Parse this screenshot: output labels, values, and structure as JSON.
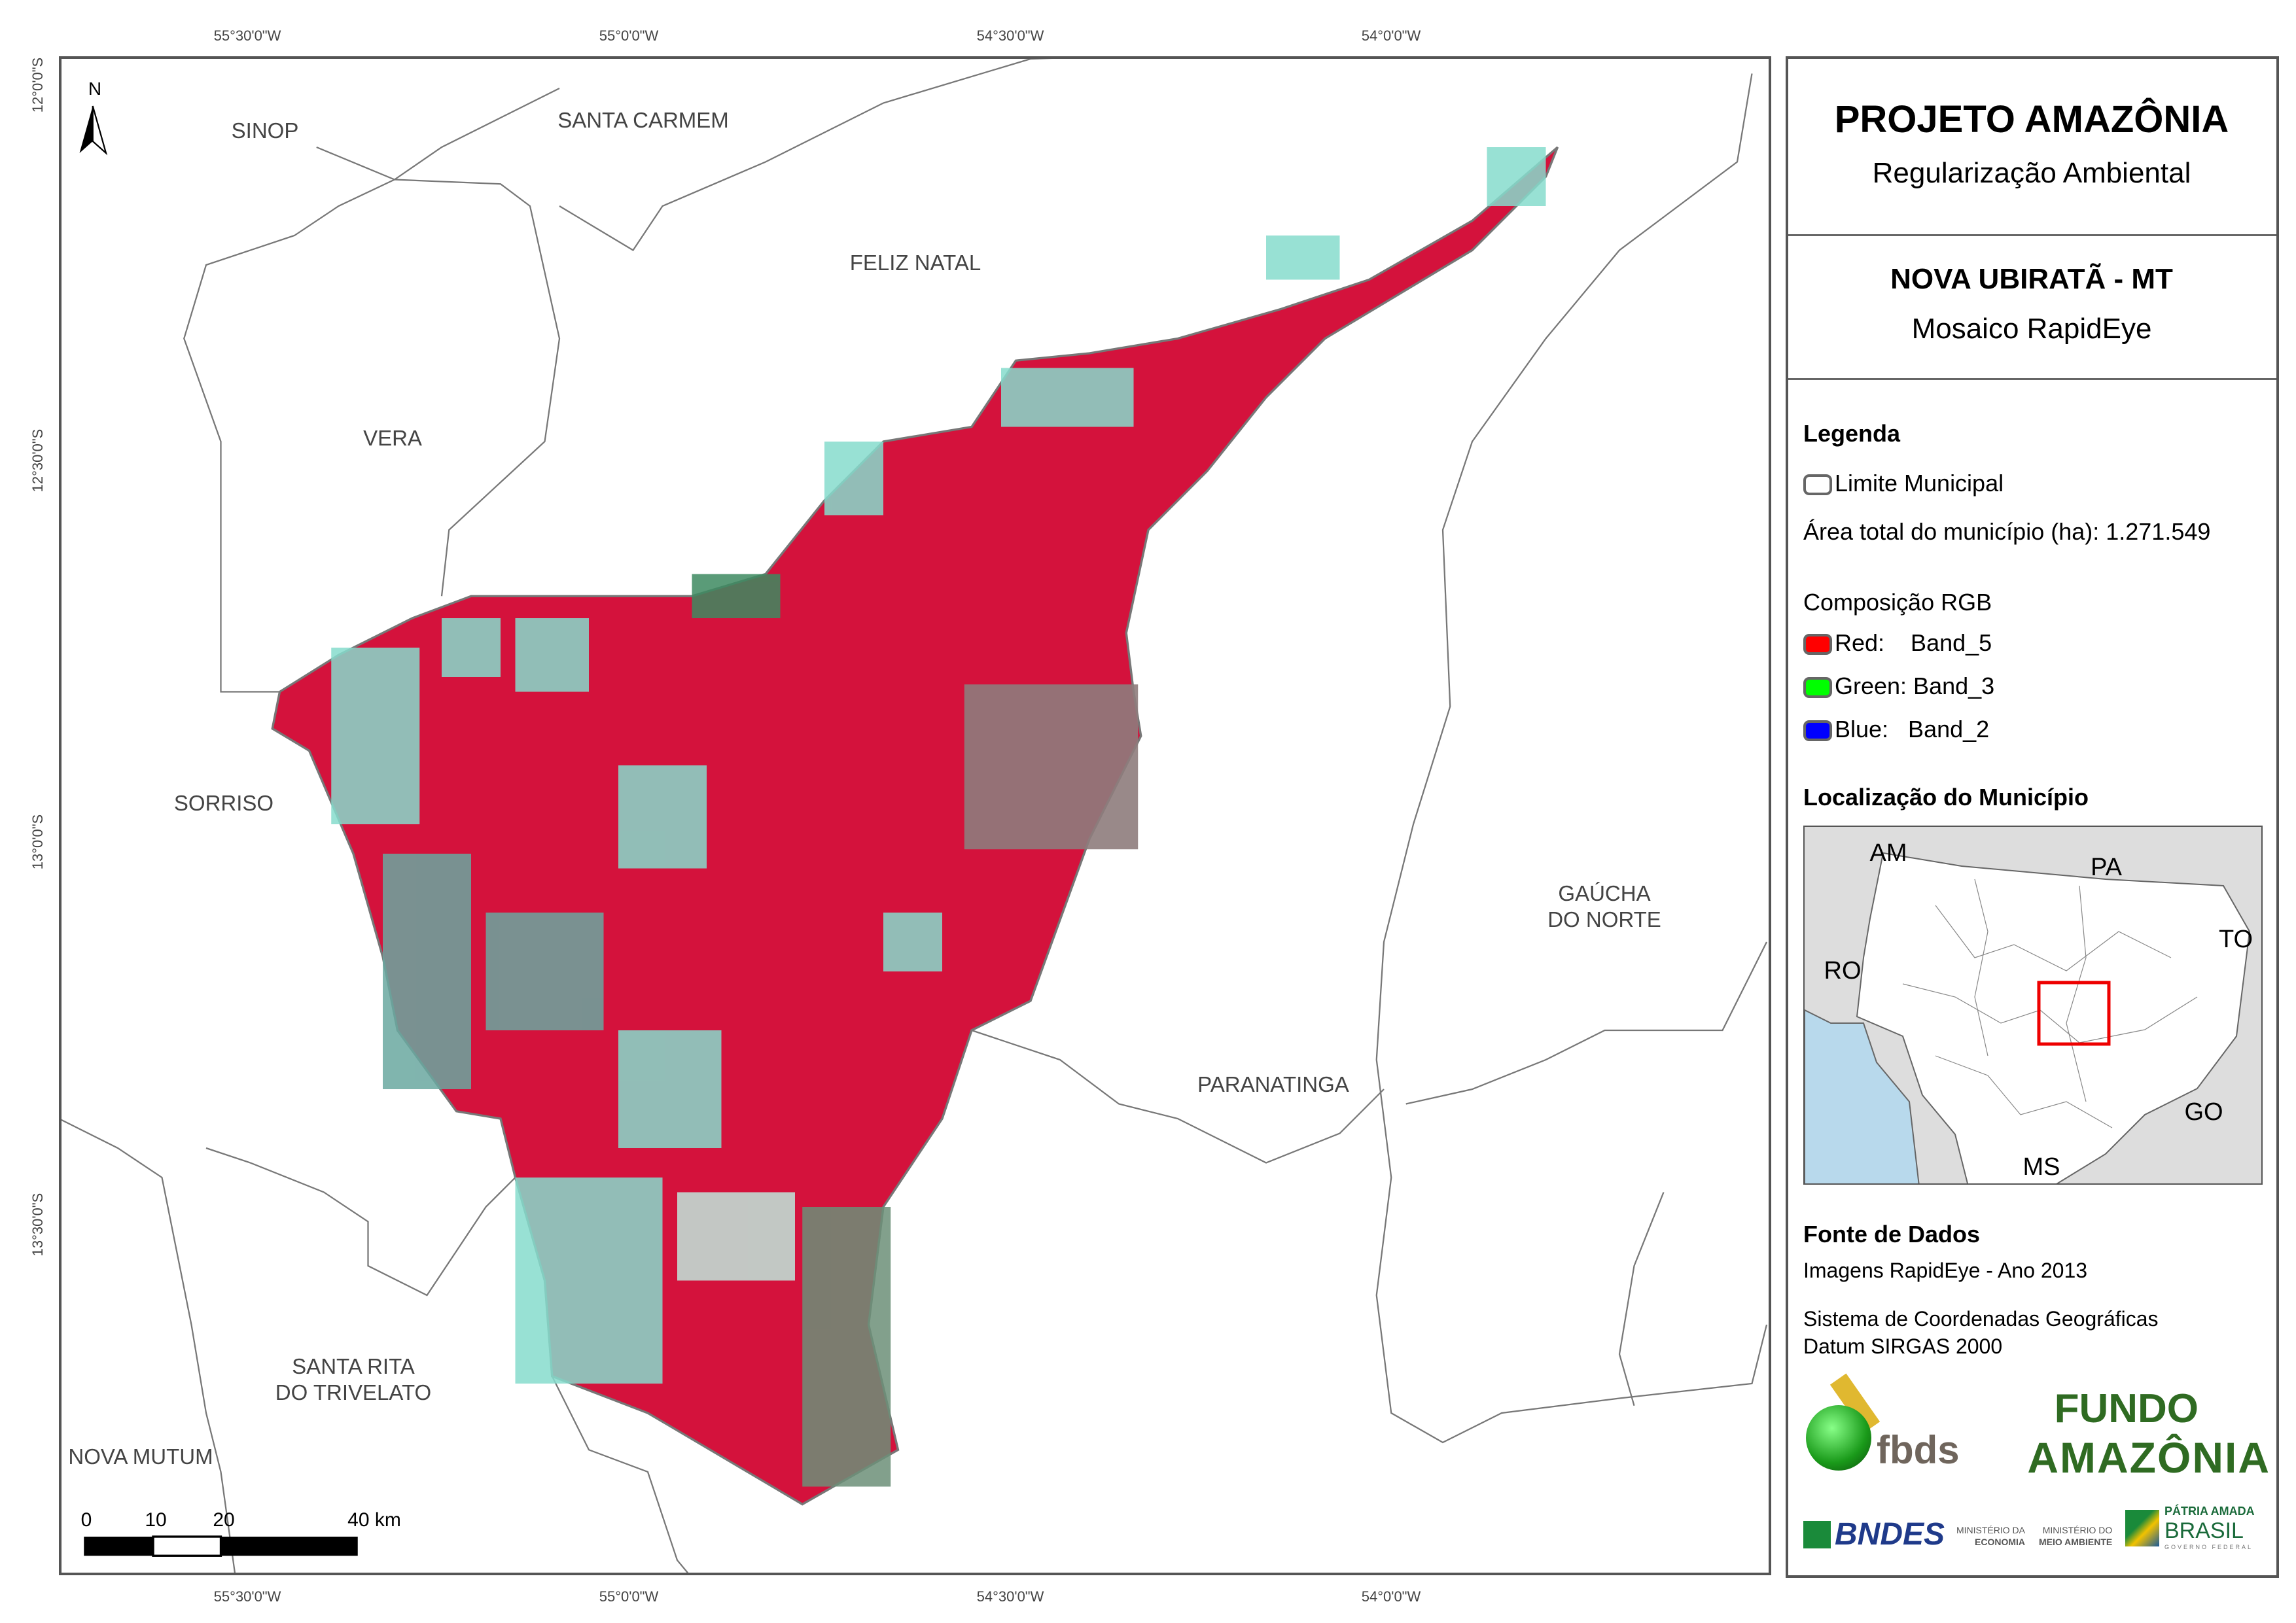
{
  "coordinates": {
    "longitudes": [
      "55°30'0\"W",
      "55°0'0\"W",
      "54°30'0\"W",
      "54°0'0\"W"
    ],
    "latitudes": [
      "12°0'0\"S",
      "12°30'0\"S",
      "13°0'0\"S",
      "13°30'0\"S"
    ]
  },
  "map": {
    "north_label": "N",
    "municipality_labels": {
      "sinop": "SINOP",
      "santa_carmem": "SANTA CARMEM",
      "feliz_natal": "FELIZ NATAL",
      "vera": "VERA",
      "sorriso": "SORRISO",
      "gaucha_1": "GAÚCHA",
      "gaucha_2": "DO NORTE",
      "paranatinga": "PARANATINGA",
      "santa_rita_1": "SANTA RITA",
      "santa_rita_2": "DO TRIVELATO",
      "nova_mutum": "NOVA MUTUM"
    },
    "scale_bar": {
      "labels": [
        "0",
        "10",
        "20",
        "40 km"
      ]
    },
    "colors": {
      "vegetation": "#d4123c",
      "cleared": "#7fe0d0",
      "boundary": "#777777"
    }
  },
  "panel": {
    "title": "PROJETO AMAZÔNIA",
    "subtitle": "Regularização Ambiental",
    "municipality": "NOVA UBIRATÃ - MT",
    "product": "Mosaico RapidEye",
    "legend": {
      "heading": "Legenda",
      "limit_label": "Limite Municipal",
      "area_label": "Área total do município (ha): 1.271.549",
      "rgb_heading": "Composição RGB",
      "bands": [
        {
          "label": "Red:    Band_5",
          "color": "#ff0000"
        },
        {
          "label": "Green: Band_3",
          "color": "#00ff00"
        },
        {
          "label": "Blue:   Band_2",
          "color": "#0000ff"
        }
      ]
    },
    "location": {
      "heading": "Localização do Município",
      "states": [
        "AM",
        "PA",
        "TO",
        "RO",
        "GO",
        "MS"
      ]
    },
    "sources": {
      "heading": "Fonte de Dados",
      "imagery": "Imagens RapidEye - Ano 2013",
      "crs_1": "Sistema de Coordenadas Geográficas",
      "crs_2": "Datum SIRGAS 2000"
    },
    "logos": {
      "fbds": "fbds",
      "fundo_1": "FUNDO",
      "fundo_2": "AMAZÔNIA",
      "bndes": "BNDES",
      "min_eco_1": "MINISTÉRIO DA",
      "min_eco_2": "ECONOMIA",
      "min_amb_1": "MINISTÉRIO DO",
      "min_amb_2": "MEIO AMBIENTE",
      "brasil_1": "PÁTRIA AMADA",
      "brasil_2": "BRASIL",
      "brasil_3": "GOVERNO FEDERAL"
    }
  }
}
